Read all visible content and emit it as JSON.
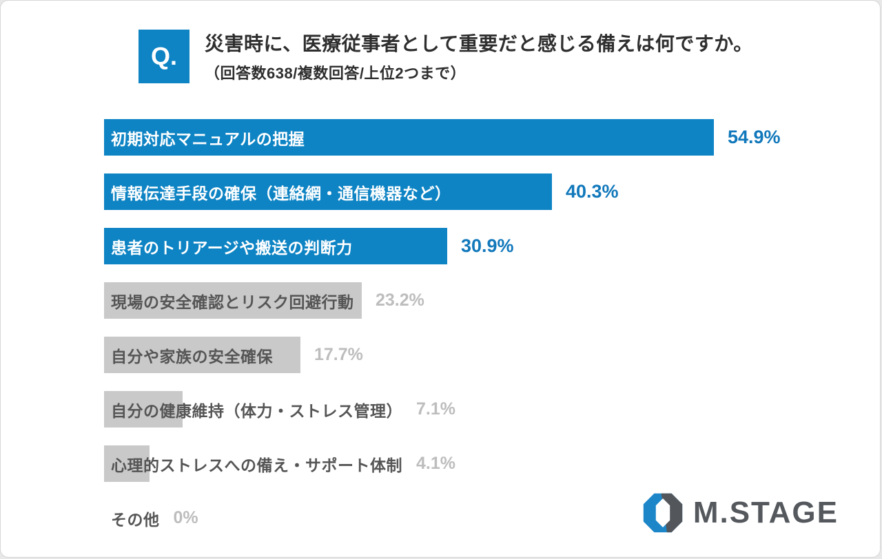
{
  "question": {
    "badge": "Q.",
    "title": "災害時に、医療従事者として重要だと感じる備えは何ですか。",
    "subtitle": "（回答数638/複数回答/上位2つまで）"
  },
  "chart_data": {
    "type": "bar",
    "orientation": "horizontal",
    "categories": [
      "初期対応マニュアルの把握",
      "情報伝達手段の確保（連絡網・通信機器など）",
      "患者のトリアージや搬送の判断力",
      "現場の安全確認とリスク回避行動",
      "自分や家族の安全確保",
      "自分の健康維持（体力・ストレス管理）",
      "心理的ストレスへの備え・サポート体制",
      "その他"
    ],
    "values": [
      54.9,
      40.3,
      30.9,
      23.2,
      17.7,
      7.1,
      4.1,
      0
    ],
    "value_labels": [
      "54.9%",
      "40.3%",
      "30.9%",
      "23.2%",
      "17.7%",
      "7.1%",
      "4.1%",
      "0%"
    ],
    "highlight_count": 3,
    "xlim": [
      0,
      60
    ],
    "grid": false,
    "legend": "none",
    "title": "",
    "xlabel": "",
    "ylabel": "",
    "colors": {
      "highlight_bar": "#0e84c4",
      "highlight_value": "#1178bb",
      "muted_bar": "#c9c9c9",
      "muted_label": "#555555",
      "muted_value": "#bdbdbd"
    }
  },
  "logo": {
    "text": "M.STAGE",
    "colors": {
      "blue": "#1d86c8",
      "gray": "#53575c",
      "text": "#55595e"
    }
  }
}
